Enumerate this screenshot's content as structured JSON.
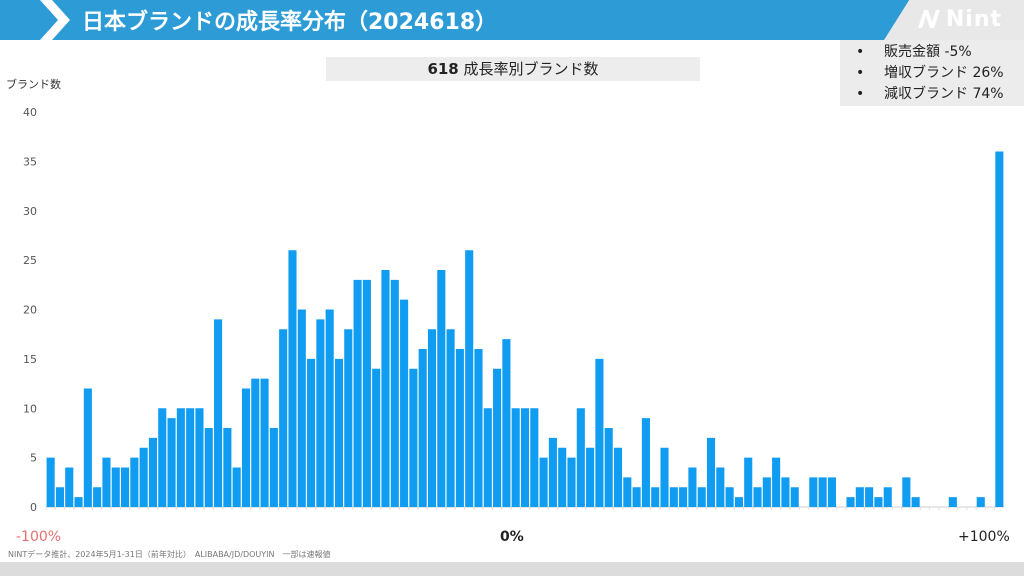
{
  "header": {
    "title": "日本ブランドの成長率分布（2024618）",
    "logo_text": "Nint"
  },
  "summary": {
    "items": [
      "販売金額 -5%",
      "増収ブランド 26%",
      "減収ブランド 74%"
    ]
  },
  "chart_title": {
    "count": "618",
    "label": "成長率別ブランド数"
  },
  "footnote": "NINTデータ推計、2024年5月1-31日（前年対比）　ALIBABA/JD/DOUYIN　一部は速報値",
  "colors": {
    "accent": "#2c9bd6",
    "bar": "#109cf1",
    "negative_label": "#e56f6f"
  },
  "chart_data": {
    "type": "bar",
    "ylabel": "ブランド数",
    "xlabel": "",
    "x_tick_labels": [
      "-100%",
      "0%",
      "+100%"
    ],
    "ylim": [
      0,
      40
    ],
    "yticks": [
      0,
      5,
      10,
      15,
      20,
      25,
      30,
      35,
      40
    ],
    "grid": false,
    "bin_count": 103,
    "values": [
      5,
      2,
      4,
      1,
      12,
      2,
      5,
      4,
      4,
      5,
      6,
      7,
      10,
      9,
      10,
      10,
      10,
      8,
      19,
      8,
      4,
      12,
      13,
      13,
      8,
      18,
      26,
      20,
      15,
      19,
      20,
      15,
      18,
      23,
      23,
      14,
      24,
      23,
      21,
      14,
      16,
      18,
      24,
      18,
      16,
      26,
      16,
      10,
      14,
      17,
      10,
      10,
      10,
      5,
      7,
      6,
      5,
      10,
      6,
      15,
      8,
      6,
      3,
      2,
      9,
      2,
      6,
      2,
      2,
      4,
      2,
      7,
      4,
      2,
      1,
      5,
      2,
      3,
      5,
      3,
      2,
      0,
      3,
      3,
      3,
      0,
      1,
      2,
      2,
      1,
      2,
      0,
      3,
      1,
      0,
      0,
      0,
      1,
      0,
      0,
      1,
      0,
      36
    ]
  }
}
